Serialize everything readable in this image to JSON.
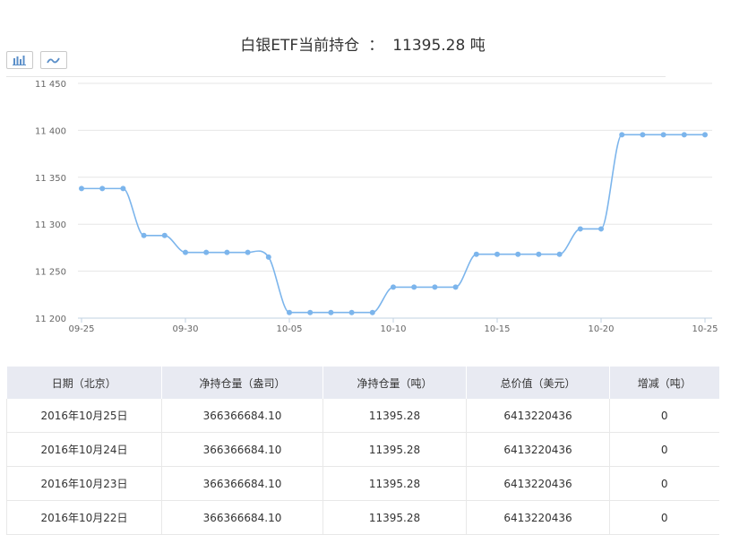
{
  "header": {
    "title": "白银ETF当前持仓",
    "colon": "：",
    "value": "11395.28 吨"
  },
  "toolbar": {
    "bar_icon": "bar-chart-icon",
    "line_icon": "line-chart-icon"
  },
  "colors": {
    "line": "#7cb5ec",
    "grid": "#e6e6e6",
    "axis_text": "#666666",
    "header_bg": "#e8eaf2"
  },
  "chart_data": {
    "type": "line",
    "x": [
      "09-25",
      "09-26",
      "09-27",
      "09-28",
      "09-29",
      "09-30",
      "10-01",
      "10-02",
      "10-03",
      "10-04",
      "10-05",
      "10-06",
      "10-07",
      "10-08",
      "10-09",
      "10-10",
      "10-11",
      "10-12",
      "10-13",
      "10-14",
      "10-15",
      "10-16",
      "10-17",
      "10-18",
      "10-19",
      "10-20",
      "10-21",
      "10-22",
      "10-23",
      "10-24",
      "10-25"
    ],
    "values": [
      11338,
      11338,
      11338,
      11288,
      11288,
      11270,
      11270,
      11270,
      11270,
      11265,
      11206,
      11206,
      11206,
      11206,
      11206,
      11233,
      11233,
      11233,
      11233,
      11268,
      11268,
      11268,
      11268,
      11268,
      11295,
      11295,
      11395.28,
      11395.28,
      11395.28,
      11395.28,
      11395.28
    ],
    "x_ticks": [
      "09-25",
      "09-30",
      "10-05",
      "10-10",
      "10-15",
      "10-20",
      "10-25"
    ],
    "y_ticks": [
      "11 200",
      "11 250",
      "11 300",
      "11 350",
      "11 400",
      "11 450"
    ],
    "ylim": [
      11200,
      11450
    ],
    "grid": true,
    "legend": "none"
  },
  "table": {
    "headers": [
      "日期（北京）",
      "净持仓量（盎司）",
      "净持仓量（吨）",
      "总价值（美元）",
      "增减（吨）"
    ],
    "rows": [
      [
        "2016年10月25日",
        "366366684.10",
        "11395.28",
        "6413220436",
        "0"
      ],
      [
        "2016年10月24日",
        "366366684.10",
        "11395.28",
        "6413220436",
        "0"
      ],
      [
        "2016年10月23日",
        "366366684.10",
        "11395.28",
        "6413220436",
        "0"
      ],
      [
        "2016年10月22日",
        "366366684.10",
        "11395.28",
        "6413220436",
        "0"
      ]
    ]
  }
}
